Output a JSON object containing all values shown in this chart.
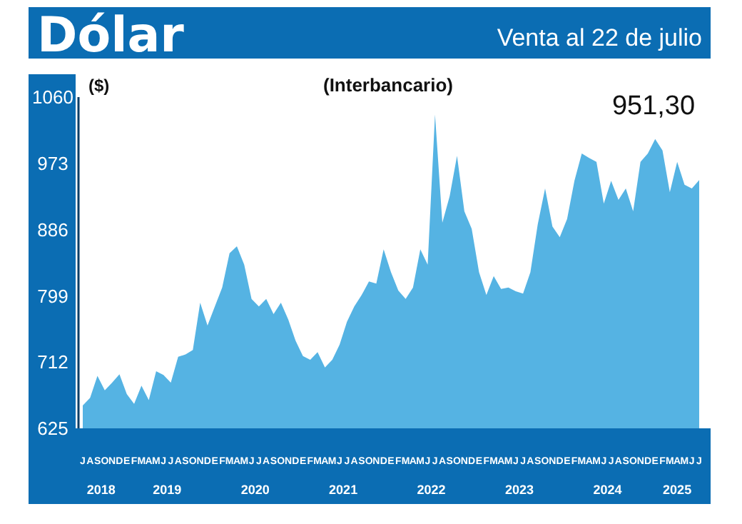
{
  "chart_data": {
    "type": "area",
    "title": "Dólar",
    "subtitle": "Venta al 22 de julio",
    "ylabel": "($)",
    "annotations": [
      "(Interbancario)",
      "951,30",
      "2018",
      "2019",
      "2020",
      "2021",
      "2022",
      "2023",
      "2024",
      "2025"
    ],
    "color": "#55b3e3",
    "categories": [
      "J",
      "A",
      "S",
      "O",
      "N",
      "D",
      "E",
      "F",
      "M",
      "A",
      "M",
      "J",
      "J",
      "A",
      "S",
      "O",
      "N",
      "D",
      "E",
      "F",
      "M",
      "A",
      "M",
      "J",
      "J",
      "A",
      "S",
      "O",
      "N",
      "D",
      "E",
      "F",
      "M",
      "A",
      "M",
      "J",
      "J",
      "A",
      "S",
      "O",
      "N",
      "D",
      "E",
      "F",
      "M",
      "A",
      "M",
      "J",
      "J",
      "A",
      "S",
      "O",
      "N",
      "D",
      "E",
      "F",
      "M",
      "A",
      "M",
      "J",
      "J",
      "A",
      "S",
      "O",
      "N",
      "D",
      "E",
      "F",
      "M",
      "A",
      "M",
      "J",
      "J",
      "A",
      "S",
      "O",
      "N",
      "D",
      "E",
      "F",
      "M",
      "A",
      "M",
      "J",
      "J"
    ],
    "values": [
      655,
      665,
      694,
      675,
      685,
      696,
      670,
      657,
      681,
      662,
      700,
      695,
      685,
      719,
      722,
      728,
      790,
      760,
      785,
      810,
      855,
      864,
      840,
      795,
      785,
      795,
      775,
      790,
      768,
      740,
      720,
      715,
      725,
      705,
      715,
      735,
      765,
      785,
      800,
      818,
      815,
      860,
      830,
      806,
      795,
      810,
      860,
      840,
      1037,
      895,
      930,
      983,
      910,
      887,
      830,
      800,
      825,
      808,
      810,
      805,
      802,
      830,
      893,
      940,
      890,
      876,
      900,
      950,
      986,
      980,
      975,
      920,
      950,
      925,
      940,
      910,
      975,
      986,
      1005,
      990,
      935,
      975,
      945,
      940,
      951
    ],
    "ylim": [
      625,
      1060
    ],
    "yticks": [
      625,
      712,
      799,
      886,
      973,
      1060
    ]
  }
}
